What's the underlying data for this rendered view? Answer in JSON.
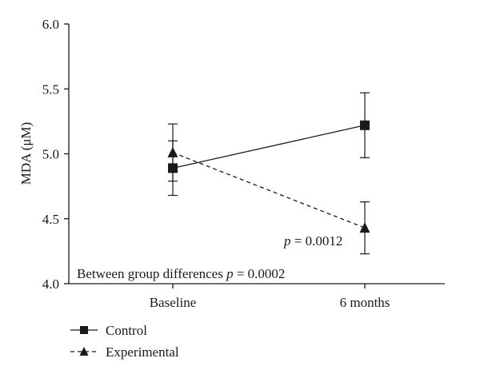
{
  "chart_data": {
    "type": "line",
    "categories": [
      "Baseline",
      "6 months"
    ],
    "ylabel": "MDA (μM)",
    "xlabel": "",
    "ylim": [
      4.0,
      6.0
    ],
    "yticks": [
      "4.0",
      "4.5",
      "5.0",
      "5.5",
      "6.0"
    ],
    "grid": false,
    "legend_position": "bottom-left",
    "series": [
      {
        "name": "Control",
        "values": [
          4.89,
          5.22
        ],
        "err_low": [
          4.68,
          4.97
        ],
        "err_high": [
          5.1,
          5.47
        ],
        "marker": "square",
        "line_style": "solid"
      },
      {
        "name": "Experimental",
        "values": [
          5.01,
          4.43
        ],
        "err_low": [
          4.79,
          4.23
        ],
        "err_high": [
          5.23,
          4.63
        ],
        "marker": "triangle",
        "line_style": "dashed"
      }
    ],
    "annotations": {
      "within_p_label": "p",
      "within_p_value": " = 0.0012",
      "between_text": "Between group differences ",
      "between_p_label": "p",
      "between_p_value": " = 0.0002"
    },
    "colors": {
      "line": "#1a1a1a",
      "background": "#ffffff"
    }
  }
}
